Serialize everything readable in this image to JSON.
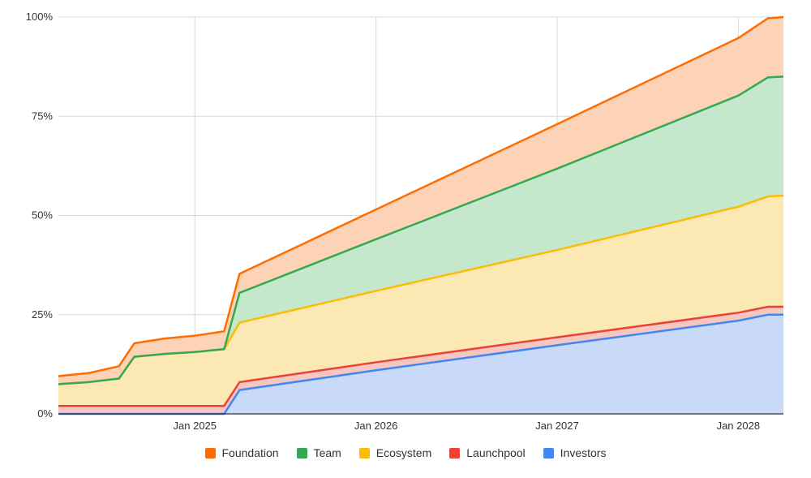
{
  "chart_data": {
    "type": "area",
    "stacked": true,
    "x": [
      "2024-04-01",
      "2024-06-01",
      "2024-08-01",
      "2024-09-01",
      "2024-11-01",
      "2025-01-01",
      "2025-03-01",
      "2025-04-01",
      "2026-01-01",
      "2027-01-01",
      "2028-01-01",
      "2028-03-01",
      "2028-04-01"
    ],
    "series": [
      {
        "name": "Investors",
        "color": "#4285F4",
        "fill": "#c9daf8",
        "values": [
          0,
          0,
          0,
          0,
          0,
          0,
          0,
          6,
          11,
          17.3,
          23.5,
          25,
          25
        ]
      },
      {
        "name": "Launchpool",
        "color": "#EA4335",
        "fill": "#f4c7c3",
        "values": [
          2,
          2,
          2,
          2,
          2,
          2,
          2,
          2,
          2,
          2,
          2,
          2,
          2
        ]
      },
      {
        "name": "Ecosystem",
        "color": "#FBBC04",
        "fill": "#fce8b2",
        "values": [
          5.5,
          6,
          6.9,
          12.4,
          13.1,
          13.6,
          14.3,
          15,
          18,
          22,
          26.7,
          27.8,
          28
        ]
      },
      {
        "name": "Team",
        "color": "#34A853",
        "fill": "#c5e7cb",
        "values": [
          0,
          0,
          0,
          0,
          0,
          0,
          0,
          7.5,
          13,
          20.5,
          28,
          30,
          30
        ]
      },
      {
        "name": "Foundation",
        "color": "#FF6D01",
        "fill": "#fcd3b6",
        "values": [
          2,
          2.3,
          3.1,
          3.4,
          3.9,
          4.1,
          4.5,
          4.8,
          7.5,
          11.2,
          14.5,
          14.9,
          15
        ]
      }
    ],
    "legend_order": [
      "Foundation",
      "Team",
      "Ecosystem",
      "Launchpool",
      "Investors"
    ],
    "x_ticks": [
      "Jan 2025",
      "Jan 2026",
      "Jan 2027",
      "Jan 2028"
    ],
    "y_ticks": [
      "0%",
      "25%",
      "50%",
      "75%",
      "100%"
    ],
    "ylim": [
      0,
      100
    ],
    "grid": true,
    "legend_position": "bottom"
  }
}
